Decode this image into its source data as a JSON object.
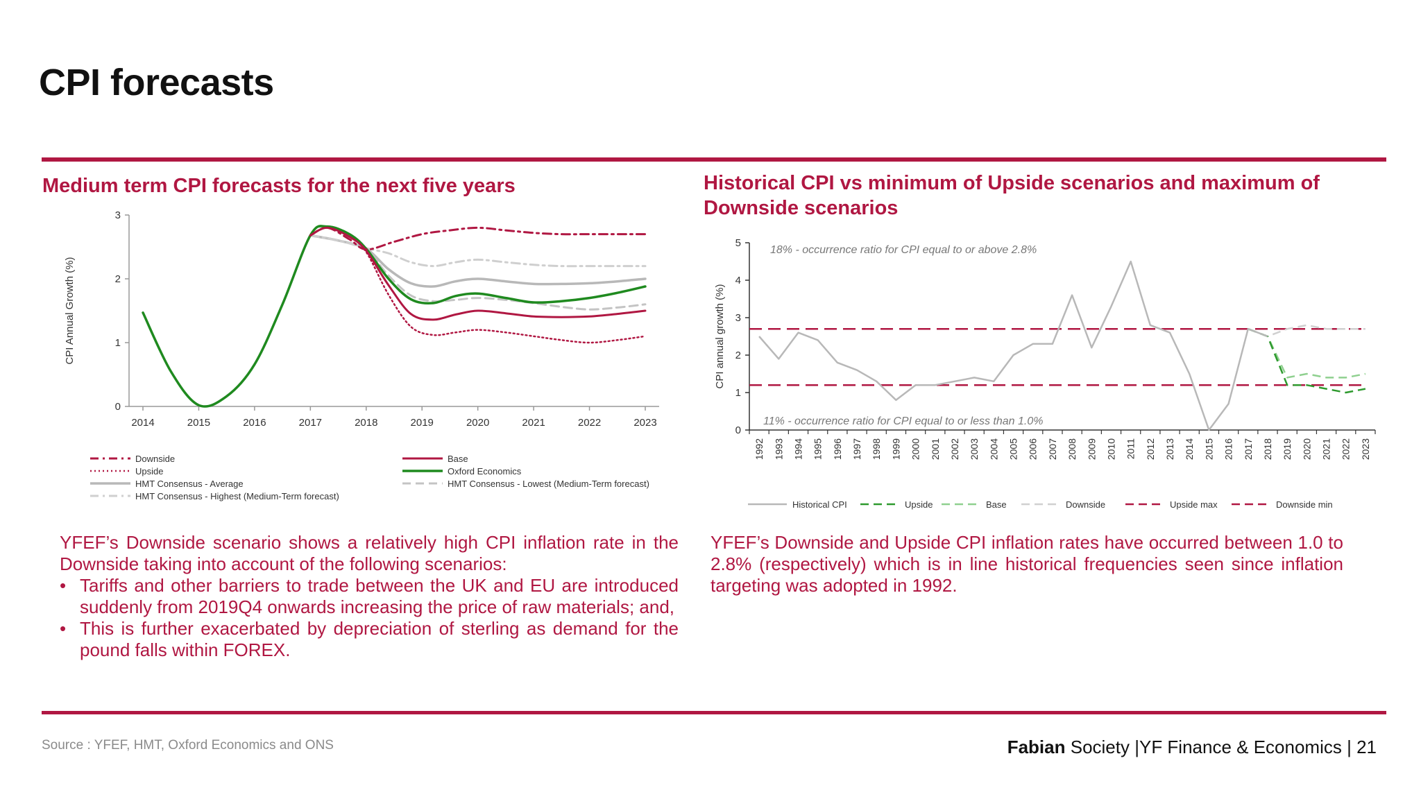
{
  "page": {
    "title": "CPI forecasts",
    "source": "Source : YFEF, HMT, Oxford Economics and ONS",
    "footer": {
      "brand_bold": "Fabian",
      "brand_rest": " Society",
      "section": " |YF Finance & Economics | ",
      "page_number": "21"
    }
  },
  "colors": {
    "accent": "#b01742",
    "green": "#1f8a1f",
    "light_green": "#8fd08f",
    "grey": "#b8b8b8",
    "light_grey": "#cfcfcf"
  },
  "left": {
    "heading": "Medium term CPI forecasts for the next five years",
    "paragraph": "YFEF’s Downside scenario shows a relatively high CPI inflation rate in the Downside taking into account of the following scenarios:",
    "bullets": [
      "Tariffs and other barriers to trade between the UK and EU are introduced suddenly from 2019Q4 onwards increasing the price of raw materials; and,",
      "This is further exacerbated by depreciation of sterling as demand for the pound falls within FOREX."
    ]
  },
  "right": {
    "heading": "Historical CPI vs minimum of Upside scenarios and maximum of Downside scenarios",
    "paragraph": "YFEF’s Downside and Upside CPI inflation rates have occurred between 1.0 to 2.8% (respectively) which is in line historical frequencies seen since inflation targeting was adopted in 1992."
  },
  "chart_data": [
    {
      "type": "line",
      "ylabel": "CPI Annual Growth (%)",
      "xlabel": "",
      "xlim": [
        2014,
        2023
      ],
      "ylim": [
        0,
        3
      ],
      "x_ticks": [
        "2014",
        "2015",
        "2016",
        "2017",
        "2018",
        "2019",
        "2020",
        "2021",
        "2022",
        "2023"
      ],
      "y_ticks": [
        "0",
        "1",
        "2",
        "3"
      ],
      "grid": false,
      "legend_position": "bottom",
      "series": [
        {
          "name": "Downside",
          "color": "#b01742",
          "style": "dashdot",
          "width": 3,
          "x": [
            2017,
            2017.3,
            2017.7,
            2018,
            2018.5,
            2019,
            2019.5,
            2020,
            2020.5,
            2021,
            2021.5,
            2022,
            2022.5,
            2023
          ],
          "y": [
            2.68,
            2.8,
            2.62,
            2.46,
            2.58,
            2.7,
            2.76,
            2.8,
            2.76,
            2.72,
            2.7,
            2.7,
            2.7,
            2.7
          ]
        },
        {
          "name": "Base",
          "color": "#b01742",
          "style": "solid",
          "width": 3,
          "x": [
            2017,
            2017.3,
            2017.7,
            2018,
            2018.4,
            2018.8,
            2019.2,
            2019.6,
            2020,
            2020.5,
            2021,
            2021.5,
            2022,
            2022.5,
            2023
          ],
          "y": [
            2.68,
            2.8,
            2.66,
            2.44,
            1.9,
            1.45,
            1.36,
            1.44,
            1.5,
            1.46,
            1.41,
            1.4,
            1.41,
            1.45,
            1.5
          ]
        },
        {
          "name": "Upside",
          "color": "#b01742",
          "style": "dotted",
          "width": 2.5,
          "x": [
            2017,
            2017.3,
            2017.7,
            2018,
            2018.4,
            2018.8,
            2019.2,
            2019.6,
            2020,
            2020.5,
            2021,
            2021.5,
            2022,
            2022.5,
            2023
          ],
          "y": [
            2.68,
            2.8,
            2.66,
            2.42,
            1.75,
            1.25,
            1.12,
            1.16,
            1.2,
            1.16,
            1.1,
            1.04,
            1.0,
            1.04,
            1.1
          ]
        },
        {
          "name": "Oxford Economics",
          "color": "#1f8a1f",
          "style": "solid",
          "width": 3.5,
          "x": [
            2014,
            2014.5,
            2015,
            2015.5,
            2016,
            2016.5,
            2017,
            2017.3,
            2017.7,
            2018,
            2018.4,
            2018.8,
            2019.2,
            2019.6,
            2020,
            2020.5,
            2021,
            2021.5,
            2022,
            2022.5,
            2023
          ],
          "y": [
            1.47,
            0.55,
            0.02,
            0.16,
            0.66,
            1.6,
            2.68,
            2.82,
            2.7,
            2.47,
            2.0,
            1.68,
            1.62,
            1.73,
            1.77,
            1.7,
            1.63,
            1.65,
            1.7,
            1.78,
            1.88
          ]
        },
        {
          "name": "HMT Consensus - Average",
          "color": "#b8b8b8",
          "style": "solid",
          "width": 3.5,
          "x": [
            2017,
            2017.5,
            2018,
            2018.4,
            2018.8,
            2019.2,
            2019.6,
            2020,
            2020.5,
            2021,
            2021.5,
            2022,
            2022.5,
            2023
          ],
          "y": [
            2.68,
            2.6,
            2.47,
            2.15,
            1.93,
            1.88,
            1.96,
            2.0,
            1.96,
            1.92,
            1.92,
            1.93,
            1.96,
            2.0
          ]
        },
        {
          "name": "HMT Consensus - Lowest (Medium-Term forecast)",
          "color": "#c4c4c4",
          "style": "dashed",
          "width": 3,
          "x": [
            2017,
            2017.5,
            2018,
            2018.4,
            2018.8,
            2019.2,
            2019.6,
            2020,
            2020.5,
            2021,
            2021.5,
            2022,
            2022.5,
            2023
          ],
          "y": [
            2.68,
            2.6,
            2.46,
            2.05,
            1.74,
            1.65,
            1.67,
            1.7,
            1.67,
            1.62,
            1.56,
            1.52,
            1.55,
            1.6
          ]
        },
        {
          "name": "HMT Consensus - Highest (Medium-Term forecast)",
          "color": "#cfcfcf",
          "style": "dashdot",
          "width": 3,
          "x": [
            2017,
            2017.5,
            2018,
            2018.4,
            2018.8,
            2019.2,
            2019.6,
            2020,
            2020.5,
            2021,
            2021.5,
            2022,
            2022.5,
            2023
          ],
          "y": [
            2.68,
            2.6,
            2.48,
            2.4,
            2.26,
            2.2,
            2.26,
            2.3,
            2.26,
            2.22,
            2.2,
            2.2,
            2.2,
            2.2
          ]
        }
      ]
    },
    {
      "type": "line",
      "ylabel": "CPI annual growth  (%)",
      "xlabel": "",
      "ylim": [
        0,
        5
      ],
      "y_ticks": [
        "0",
        "1",
        "2",
        "3",
        "4",
        "5"
      ],
      "categories": [
        "1992",
        "1993",
        "1994",
        "1995",
        "1996",
        "1997",
        "1998",
        "1999",
        "2000",
        "2001",
        "2002",
        "2003",
        "2004",
        "2005",
        "2006",
        "2007",
        "2008",
        "2009",
        "2010",
        "2011",
        "2012",
        "2013",
        "2014",
        "2015",
        "2016",
        "2017",
        "2018",
        "2019",
        "2020",
        "2021",
        "2022",
        "2023"
      ],
      "grid": false,
      "legend_position": "bottom",
      "annotations": [
        {
          "text": "18% - occurrence ratio for CPI equal to or above 2.8%",
          "x": "1992",
          "y": 4.8
        },
        {
          "text": "11% - occurrence ratio for CPI equal to or less than 1.0%",
          "x": "1992",
          "y": 0.3
        }
      ],
      "series": [
        {
          "name": "Historical CPI",
          "color": "#b8b8b8",
          "style": "solid",
          "width": 2.5,
          "values": [
            2.5,
            1.9,
            2.6,
            2.4,
            1.8,
            1.6,
            1.3,
            0.8,
            1.2,
            1.2,
            1.3,
            1.4,
            1.3,
            2.0,
            2.3,
            2.3,
            3.6,
            2.2,
            3.3,
            4.5,
            2.8,
            2.6,
            1.5,
            0.0,
            0.7,
            2.7,
            2.5,
            null,
            null,
            null,
            null,
            null
          ]
        },
        {
          "name": "Upside",
          "color": "#2e9a2e",
          "style": "dashed",
          "width": 2.5,
          "values": [
            null,
            null,
            null,
            null,
            null,
            null,
            null,
            null,
            null,
            null,
            null,
            null,
            null,
            null,
            null,
            null,
            null,
            null,
            null,
            null,
            null,
            null,
            null,
            null,
            null,
            2.7,
            2.5,
            1.2,
            1.2,
            1.1,
            1.0,
            1.1
          ]
        },
        {
          "name": "Base",
          "color": "#8fd08f",
          "style": "dashed",
          "width": 2.5,
          "values": [
            null,
            null,
            null,
            null,
            null,
            null,
            null,
            null,
            null,
            null,
            null,
            null,
            null,
            null,
            null,
            null,
            null,
            null,
            null,
            null,
            null,
            null,
            null,
            null,
            null,
            2.7,
            2.5,
            1.4,
            1.5,
            1.4,
            1.4,
            1.5
          ]
        },
        {
          "name": "Downside",
          "color": "#d0d0d0",
          "style": "dashed",
          "width": 2.5,
          "values": [
            null,
            null,
            null,
            null,
            null,
            null,
            null,
            null,
            null,
            null,
            null,
            null,
            null,
            null,
            null,
            null,
            null,
            null,
            null,
            null,
            null,
            null,
            null,
            null,
            null,
            2.7,
            2.5,
            2.7,
            2.8,
            2.7,
            2.7,
            2.7
          ]
        },
        {
          "name": "Upside max",
          "color": "#b01742",
          "style": "dashed",
          "width": 2.5,
          "constant": 2.7
        },
        {
          "name": "Downside min",
          "color": "#b01742",
          "style": "dashed",
          "width": 2.5,
          "constant": 1.2
        }
      ]
    }
  ]
}
